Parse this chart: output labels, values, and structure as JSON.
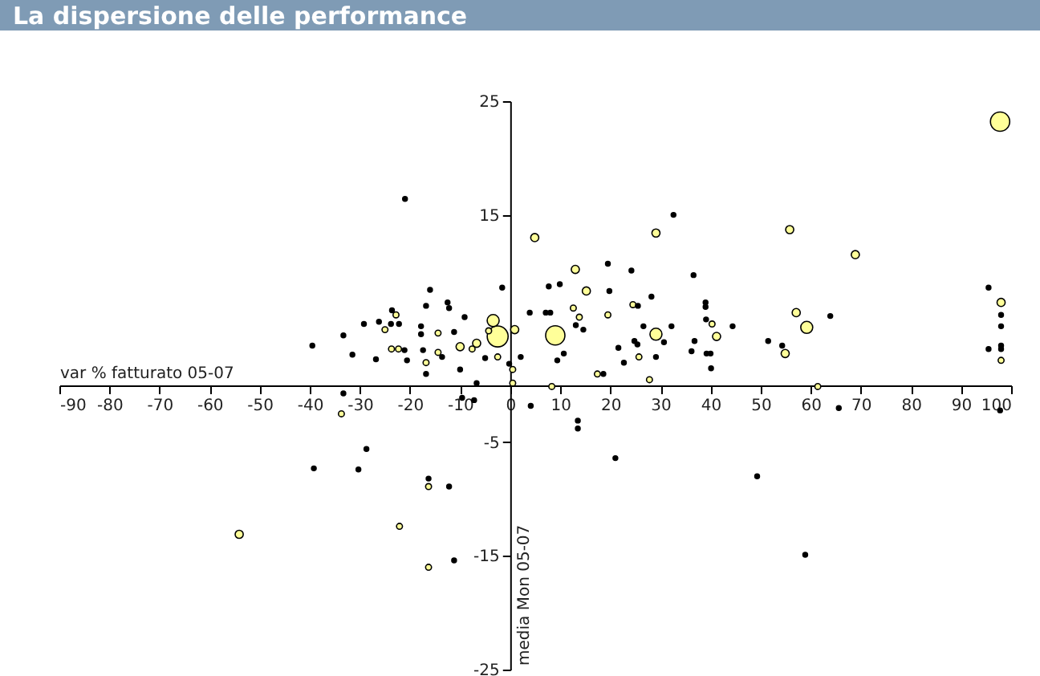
{
  "chart_data": {
    "type": "bubble",
    "title": "La dispersione delle performance",
    "xlabel": "var % fatturato 05-07",
    "ylabel": "media Mon 05-07",
    "grid": false,
    "xlim": [
      -90,
      100
    ],
    "xticks": [
      -90,
      -80,
      -70,
      -60,
      -50,
      -40,
      -30,
      -20,
      -10,
      0,
      10,
      20,
      30,
      40,
      50,
      60,
      70,
      80,
      90,
      100
    ],
    "ylim": [
      -25,
      25
    ],
    "yticks": [
      -25,
      -15,
      -5,
      15,
      25
    ],
    "series": [
      {
        "color": "#ffff99",
        "x": [
          -2.5,
          97.8,
          9.0,
          -3.4,
          29.1,
          59.2,
          0.9,
          4.9,
          29.1,
          55.8,
          68.9,
          13.0,
          15.2,
          -10.0,
          -6.7,
          41.2,
          57.1,
          98.0,
          54.9,
          -54.1,
          -22.8,
          -25.0,
          -14.4,
          -4.3,
          -23.7,
          -22.3,
          -16.8,
          -14.4,
          -7.6,
          -2.5,
          0.5,
          0.5,
          12.6,
          13.8,
          19.5,
          24.5,
          40.3,
          98.0,
          25.7,
          17.4,
          27.8,
          8.3,
          61.4,
          -33.7,
          -16.3,
          -22.1,
          -16.3
        ],
        "values": [
          4.3,
          23.2,
          4.4,
          5.7,
          4.5,
          5.1,
          4.9,
          13.0,
          13.4,
          13.7,
          11.5,
          10.2,
          8.3,
          3.4,
          3.7,
          4.3,
          6.4,
          7.3,
          2.8,
          -13.1,
          6.2,
          4.9,
          4.6,
          4.8,
          3.2,
          3.2,
          2.0,
          2.9,
          3.2,
          2.5,
          1.4,
          0.2,
          6.8,
          6.0,
          6.2,
          7.1,
          5.4,
          2.2,
          2.5,
          1.0,
          0.5,
          -0.1,
          -0.1,
          -2.5,
          -8.9,
          -12.4,
          -16.0
        ],
        "sizes": [
          1,
          0.85,
          0.85,
          0.33,
          0.33,
          0.33,
          0.15,
          0.15,
          0.15,
          0.15,
          0.15,
          0.15,
          0.15,
          0.15,
          0.15,
          0.15,
          0.15,
          0.15,
          0.15,
          0.15,
          0.08,
          0.08,
          0.08,
          0.08,
          0.08,
          0.08,
          0.08,
          0.08,
          0.08,
          0.08,
          0.08,
          0.08,
          0.08,
          0.08,
          0.08,
          0.08,
          0.08,
          0.08,
          0.08,
          0.08,
          0.08,
          0.08,
          0.08,
          0.08,
          0.08,
          0.08,
          0.08
        ]
      },
      {
        "color": "#000000",
        "x": [
          -21.0,
          -1.6,
          -16.0,
          -12.5,
          -12.2,
          -16.8,
          -23.6,
          -26.2,
          -29.2,
          -23.8,
          -22.2,
          -17.8,
          -17.8,
          -9.1,
          -11.2,
          -33.3,
          -39.5,
          -31.5,
          -26.8,
          -21.1,
          -20.6,
          -17.4,
          -13.6,
          -16.8,
          -5.0,
          2.1,
          -10.0,
          -6.7,
          -0.2,
          3.9,
          32.6,
          19.5,
          24.2,
          36.6,
          7.7,
          9.9,
          19.8,
          28.2,
          7.1,
          8.0,
          25.5,
          39.0,
          39.0,
          13.1,
          14.6,
          26.6,
          32.2,
          39.1,
          44.4,
          63.9,
          95.5,
          98.0,
          98.0,
          98.0,
          98.0,
          95.5,
          51.5,
          54.3,
          29.1,
          24.8,
          25.4,
          21.6,
          22.7,
          30.7,
          36.2,
          36.8,
          39.2,
          40.0,
          40.1,
          18.6,
          10.7,
          9.4,
          -33.3,
          -9.6,
          -7.2,
          -28.7,
          -39.2,
          -30.3,
          -16.3,
          -12.2,
          -11.2,
          4.1,
          13.5,
          13.5,
          21.0,
          49.3,
          58.9,
          65.6,
          97.8
        ],
        "values": [
          16.4,
          8.6,
          8.4,
          7.3,
          6.8,
          7.0,
          6.6,
          5.6,
          5.4,
          5.4,
          5.4,
          5.2,
          4.5,
          6.0,
          4.7,
          4.4,
          3.5,
          2.7,
          2.3,
          3.1,
          2.2,
          3.1,
          2.5,
          1.0,
          2.4,
          2.5,
          1.4,
          0.2,
          1.9,
          6.4,
          15.0,
          10.7,
          10.1,
          9.7,
          8.7,
          8.9,
          8.3,
          7.8,
          6.4,
          6.4,
          7.0,
          7.3,
          6.9,
          5.3,
          4.9,
          5.2,
          5.2,
          5.8,
          5.2,
          6.1,
          8.6,
          6.2,
          5.2,
          3.5,
          3.2,
          3.2,
          3.9,
          3.5,
          2.5,
          3.9,
          3.6,
          3.3,
          2.0,
          3.8,
          3.0,
          3.9,
          2.8,
          2.8,
          1.5,
          1.0,
          2.8,
          2.2,
          -0.7,
          -1.1,
          -1.3,
          -5.6,
          -7.3,
          -7.4,
          -8.2,
          -8.9,
          -15.4,
          -1.8,
          -3.1,
          -3.8,
          -6.4,
          -8.0,
          -14.9,
          -2.0,
          -2.2
        ],
        "sizes": [
          0.05,
          0.05,
          0.05,
          0.05,
          0.05,
          0.05,
          0.05,
          0.05,
          0.05,
          0.05,
          0.05,
          0.05,
          0.05,
          0.05,
          0.05,
          0.05,
          0.05,
          0.05,
          0.05,
          0.05,
          0.05,
          0.05,
          0.05,
          0.05,
          0.05,
          0.05,
          0.05,
          0.05,
          0.05,
          0.05,
          0.05,
          0.05,
          0.05,
          0.05,
          0.05,
          0.05,
          0.05,
          0.05,
          0.05,
          0.05,
          0.05,
          0.05,
          0.05,
          0.05,
          0.05,
          0.05,
          0.05,
          0.05,
          0.05,
          0.05,
          0.05,
          0.05,
          0.05,
          0.05,
          0.05,
          0.05,
          0.05,
          0.05,
          0.05,
          0.05,
          0.05,
          0.05,
          0.05,
          0.05,
          0.05,
          0.05,
          0.05,
          0.05,
          0.05,
          0.05,
          0.05,
          0.05,
          0.05,
          0.05,
          0.05,
          0.05,
          0.05,
          0.05,
          0.05,
          0.05,
          0.05,
          0.05,
          0.05,
          0.05,
          0.05,
          0.05,
          0.05,
          0.05,
          0.05
        ]
      }
    ]
  }
}
